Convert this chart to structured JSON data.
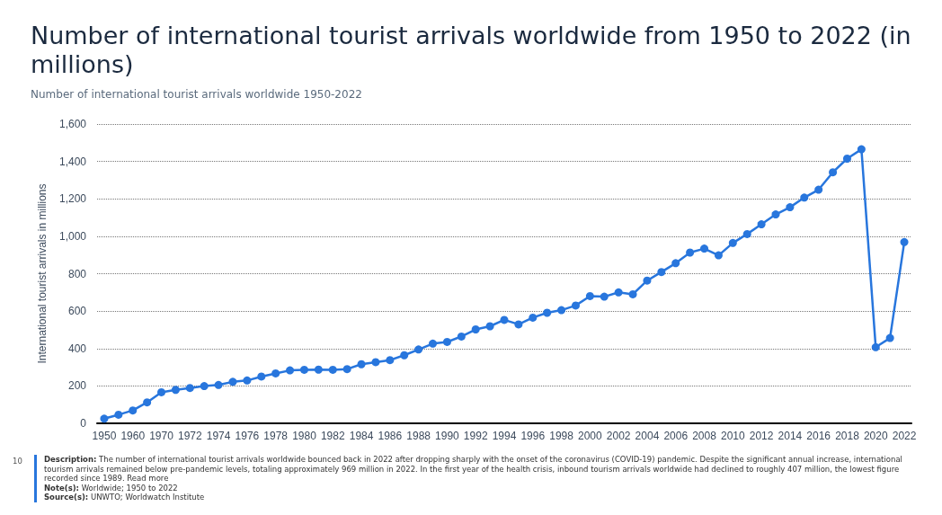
{
  "chart_data": {
    "type": "line",
    "title": "Number of international tourist arrivals worldwide from 1950 to 2022 (in millions)",
    "subtitle": "Number of international tourist arrivals worldwide 1950-2022",
    "ylabel": "International tourist arrivals in millions",
    "categories": [
      "1950",
      null,
      "1960",
      null,
      "1970",
      null,
      "1972",
      null,
      "1974",
      null,
      "1976",
      null,
      "1978",
      null,
      "1980",
      null,
      "1982",
      null,
      "1984",
      null,
      "1986",
      null,
      "1988",
      null,
      "1990",
      null,
      "1992",
      null,
      "1994",
      null,
      "1996",
      null,
      "1998",
      null,
      "2000",
      null,
      "2002",
      null,
      "2004",
      null,
      "2006",
      null,
      "2008",
      null,
      "2010",
      null,
      "2012",
      null,
      "2014",
      null,
      "2016",
      null,
      "2018",
      null,
      "2020",
      null,
      "2022"
    ],
    "series": [
      {
        "color": "#2876dd",
        "values": [
          25,
          46,
          69,
          112,
          166,
          179,
          189,
          199,
          205,
          222,
          229,
          250,
          267,
          283,
          286,
          287,
          286,
          290,
          316,
          327,
          338,
          364,
          395,
          426,
          435,
          464,
          502,
          519,
          553,
          529,
          565,
          591,
          605,
          630,
          680,
          677,
          700,
          690,
          763,
          809,
          856,
          913,
          934,
          898,
          964,
          1012,
          1064,
          1117,
          1155,
          1207,
          1249,
          1342,
          1415,
          1465,
          407,
          456,
          969
        ]
      }
    ],
    "ylim": [
      0,
      1600
    ],
    "yticks": [
      0,
      200,
      400,
      600,
      800,
      {
        "value": 1000,
        "label": "1,000"
      },
      {
        "value": 1200,
        "label": "1,200"
      },
      {
        "value": 1400,
        "label": "1,400"
      },
      {
        "value": 1600,
        "label": "1,600"
      }
    ],
    "grid": "y",
    "marker": "circle",
    "line_style": "solid",
    "annotations": [
      "10",
      "Description: The number of international tourist arrivals worldwide bounced back in 2022 after dropping sharply with the onset of the coronavirus (COVID-19) pandemic. Despite the significant annual increase, international tourism arrivals remained below pre-pandemic levels, totaling approximately 969 million in 2022. In the first year of the health crisis, inbound tourism arrivals worldwide had declined to roughly 407 million, the lowest figure recorded since 1989. Read more",
      "Note(s): Worldwide; 1950 to 2022",
      "Source(s): UNWTO; Worldwatch Institute"
    ]
  }
}
